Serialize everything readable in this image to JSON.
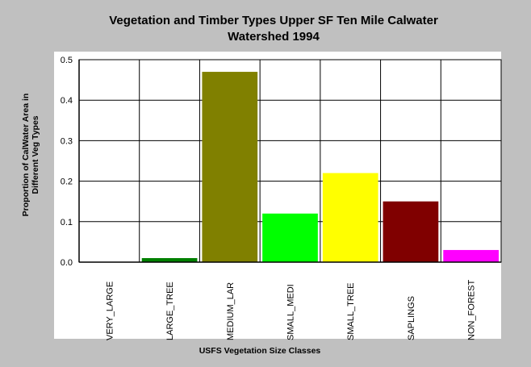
{
  "chart_data": {
    "type": "bar",
    "title_lines": [
      "Vegetation and Timber Types Upper SF Ten Mile Calwater",
      "Watershed 1994"
    ],
    "xlabel": "USFS Vegetation Size Classes",
    "ylabel_lines": [
      "Proportion of CalWater Area in",
      "Different Veg Types"
    ],
    "categories": [
      "VERY_LARGE",
      "LARGE_TREE",
      "MEDIUM_LAR",
      "SMALL_MEDI",
      "SMALL_TREE",
      "SAPLINGS",
      "NON_FOREST"
    ],
    "values": [
      0.0,
      0.01,
      0.47,
      0.12,
      0.22,
      0.15,
      0.03
    ],
    "colors": [
      "#ffffff",
      "#008000",
      "#808000",
      "#00ff00",
      "#ffff00",
      "#800000",
      "#ff00ff"
    ],
    "ylim": [
      0,
      0.5
    ],
    "yticks": [
      "0.0",
      "0.1",
      "0.2",
      "0.3",
      "0.4",
      "0.5"
    ],
    "grid": true,
    "legend": "none"
  }
}
